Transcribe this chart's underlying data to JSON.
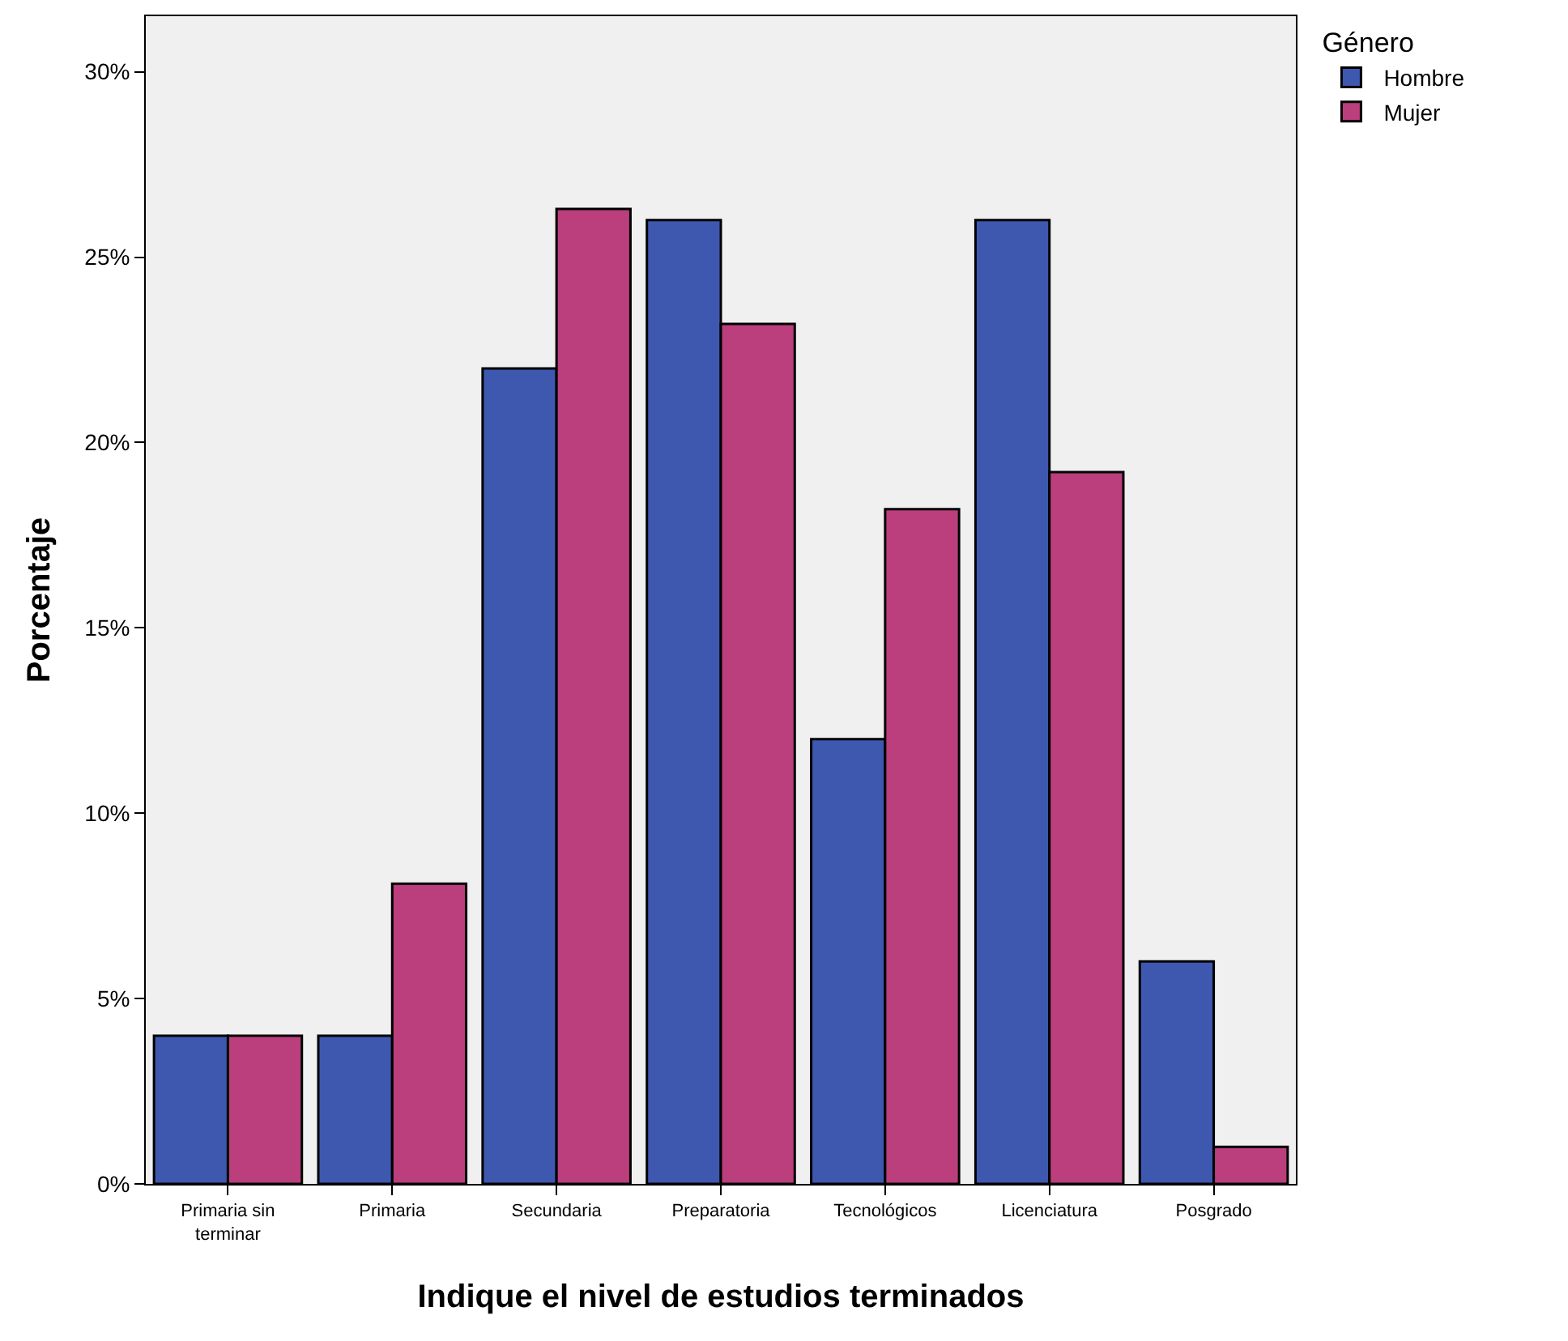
{
  "chart_data": {
    "type": "bar",
    "xlabel": "Indique el nivel de estudios terminados",
    "ylabel": "Porcentaje",
    "legend_title": "Género",
    "categories": [
      "Primaria sin terminar",
      "Primaria",
      "Secundaria",
      "Preparatoria",
      "Tecnológicos",
      "Licenciatura",
      "Posgrado"
    ],
    "series": [
      {
        "name": "Hombre",
        "color": "#3e58b0",
        "values": [
          4.0,
          4.0,
          22.0,
          26.0,
          12.0,
          26.0,
          6.0
        ]
      },
      {
        "name": "Mujer",
        "color": "#bb3e7d",
        "values": [
          4.0,
          8.1,
          26.3,
          23.2,
          18.2,
          19.2,
          1.0
        ]
      }
    ],
    "ylim": [
      0,
      31.5
    ],
    "yticks": [
      {
        "value": 0,
        "label": "0%"
      },
      {
        "value": 5,
        "label": "5%"
      },
      {
        "value": 10,
        "label": "10%"
      },
      {
        "value": 15,
        "label": "15%"
      },
      {
        "value": 20,
        "label": "20%"
      },
      {
        "value": 25,
        "label": "25%"
      },
      {
        "value": 30,
        "label": "30%"
      }
    ],
    "grid": false,
    "legend": "top right"
  }
}
